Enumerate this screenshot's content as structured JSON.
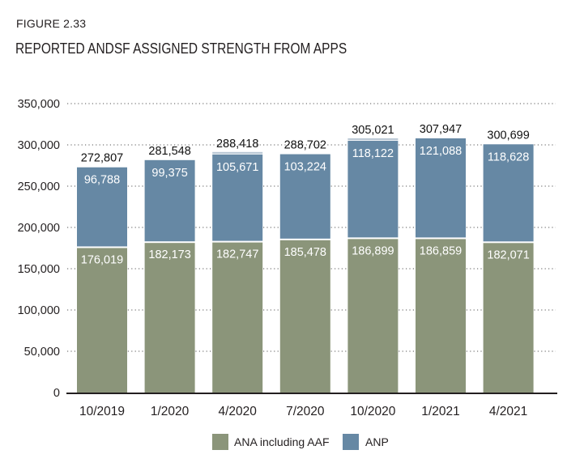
{
  "figure_label": "FIGURE 2.33",
  "title": "REPORTED ANDSF ASSIGNED STRENGTH FROM APPS",
  "colors": {
    "ana": "#8b957a",
    "anp": "#6688a4",
    "axis": "#231f20",
    "grid": "#555555"
  },
  "chart_data": {
    "type": "bar",
    "stacked": true,
    "title": "REPORTED ANDSF ASSIGNED STRENGTH FROM APPS",
    "xlabel": "",
    "ylabel": "",
    "categories": [
      "10/2019",
      "1/2020",
      "4/2020",
      "7/2020",
      "10/2020",
      "1/2021",
      "4/2021"
    ],
    "series": [
      {
        "name": "ANA including AAF",
        "values": [
          176019,
          182173,
          182747,
          185478,
          186899,
          186859,
          182071
        ]
      },
      {
        "name": "ANP",
        "values": [
          96788,
          99375,
          105671,
          103224,
          118122,
          121088,
          118628
        ]
      }
    ],
    "totals": [
      272807,
      281548,
      288418,
      288702,
      305021,
      307947,
      300699
    ],
    "ylim": [
      0,
      350000
    ],
    "yticks": [
      0,
      50000,
      100000,
      150000,
      200000,
      250000,
      300000,
      350000
    ],
    "ytick_labels": [
      "0",
      "50,000",
      "100,000",
      "150,000",
      "200,000",
      "250,000",
      "300,000",
      "350,000"
    ],
    "grid": true,
    "legend_position": "bottom-center"
  }
}
